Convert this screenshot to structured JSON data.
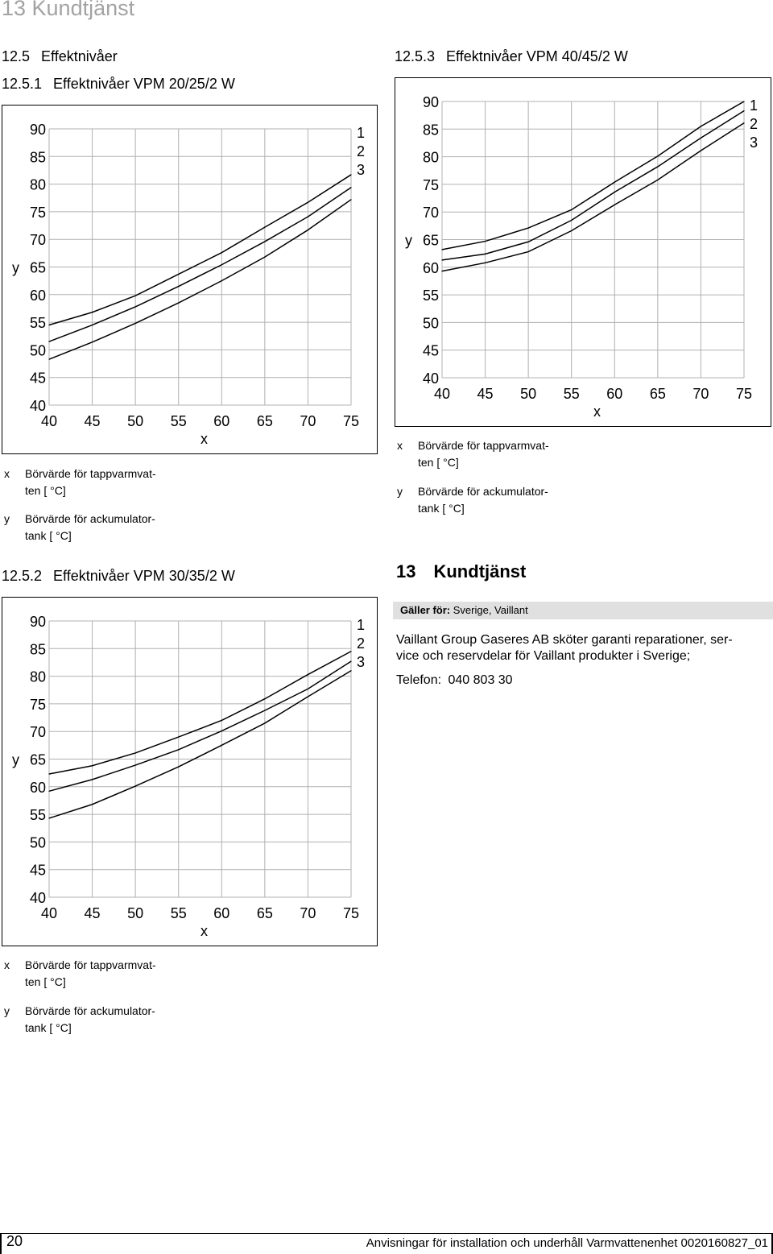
{
  "page_header": "13 Kundtjänst",
  "section_125": {
    "num": "12.5",
    "title": "Effektnivåer"
  },
  "charts": [
    {
      "num": "12.5.1",
      "title": "Effektnivåer VPM 20/25/2 W"
    },
    {
      "num": "12.5.2",
      "title": "Effektnivåer VPM 30/35/2 W"
    },
    {
      "num": "12.5.3",
      "title": "Effektnivåer VPM 40/45/2 W"
    }
  ],
  "chart_data": [
    {
      "type": "line",
      "x": [
        40,
        45,
        50,
        55,
        60,
        65,
        70,
        75
      ],
      "xlabel": "x",
      "ylabel": "y",
      "xlim": [
        40,
        75
      ],
      "ylim": [
        40,
        90
      ],
      "xticks": [
        "40",
        "45",
        "50",
        "55",
        "60",
        "65",
        "70",
        "75"
      ],
      "yticks": [
        "90",
        "85",
        "80",
        "75",
        "70",
        "65",
        "60",
        "55",
        "50",
        "45",
        "40"
      ],
      "grid": true,
      "series": [
        {
          "name": "1",
          "x": [
            40,
            45,
            50,
            55,
            60,
            65,
            70,
            75
          ],
          "y": [
            54.5,
            56.8,
            59.8,
            63.7,
            67.6,
            72.2,
            76.7,
            81.7
          ]
        },
        {
          "name": "2",
          "x": [
            40,
            45,
            50,
            55,
            60,
            65,
            70,
            75
          ],
          "y": [
            51.5,
            54.5,
            57.8,
            61.5,
            65.4,
            69.6,
            74.1,
            79.4
          ]
        },
        {
          "name": "3",
          "x": [
            40,
            45,
            50,
            55,
            60,
            65,
            70,
            75
          ],
          "y": [
            48.3,
            51.4,
            54.8,
            58.5,
            62.5,
            66.8,
            71.7,
            77.2
          ]
        }
      ]
    },
    {
      "type": "line",
      "x": [
        40,
        45,
        50,
        55,
        60,
        65,
        70,
        75
      ],
      "xlabel": "x",
      "ylabel": "y",
      "xlim": [
        40,
        75
      ],
      "ylim": [
        40,
        90
      ],
      "xticks": [
        "40",
        "45",
        "50",
        "55",
        "60",
        "65",
        "70",
        "75"
      ],
      "yticks": [
        "90",
        "85",
        "80",
        "75",
        "70",
        "65",
        "60",
        "55",
        "50",
        "45",
        "40"
      ],
      "grid": true,
      "series": [
        {
          "name": "1",
          "x": [
            40,
            45,
            50,
            55,
            60,
            65,
            70,
            75
          ],
          "y": [
            62.3,
            63.8,
            66.1,
            69.0,
            72.0,
            75.9,
            80.3,
            84.5
          ]
        },
        {
          "name": "2",
          "x": [
            40,
            45,
            50,
            55,
            60,
            65,
            70,
            75
          ],
          "y": [
            59.2,
            61.3,
            63.9,
            66.7,
            70.1,
            73.8,
            77.7,
            82.7
          ]
        },
        {
          "name": "3",
          "x": [
            40,
            45,
            50,
            55,
            60,
            65,
            70,
            75
          ],
          "y": [
            54.3,
            56.8,
            60.1,
            63.6,
            67.5,
            71.5,
            76.3,
            81.0
          ]
        }
      ]
    },
    {
      "type": "line",
      "x": [
        40,
        45,
        50,
        55,
        60,
        65,
        70,
        75
      ],
      "xlabel": "x",
      "ylabel": "y",
      "xlim": [
        40,
        75
      ],
      "ylim": [
        40,
        90
      ],
      "xticks": [
        "40",
        "45",
        "50",
        "55",
        "60",
        "65",
        "70",
        "75"
      ],
      "yticks": [
        "90",
        "85",
        "80",
        "75",
        "70",
        "65",
        "60",
        "55",
        "50",
        "45",
        "40"
      ],
      "grid": true,
      "series": [
        {
          "name": "1",
          "x": [
            40,
            45,
            50,
            55,
            60,
            65,
            70,
            75
          ],
          "y": [
            63.2,
            64.7,
            67.1,
            70.4,
            75.4,
            80.1,
            85.5,
            90.0
          ]
        },
        {
          "name": "2",
          "x": [
            40,
            45,
            50,
            55,
            60,
            65,
            70,
            75
          ],
          "y": [
            61.3,
            62.4,
            64.6,
            68.5,
            73.6,
            78.2,
            83.4,
            88.3
          ]
        },
        {
          "name": "3",
          "x": [
            40,
            45,
            50,
            55,
            60,
            65,
            70,
            75
          ],
          "y": [
            59.3,
            60.8,
            62.8,
            66.6,
            71.3,
            75.8,
            81.1,
            86.1
          ]
        }
      ]
    }
  ],
  "legend": {
    "x_key": "x",
    "x_line1": "Börvärde för tappvarmvat-",
    "x_line2": "ten [ °C]",
    "y_key": "y",
    "y_line1": "Börvärde för ackumulator-",
    "y_line2": "tank [ °C]"
  },
  "kundtjanst": {
    "num": "13",
    "title": "Kundtjänst",
    "applies_label": "Gäller för:",
    "applies_value": "Sverige, Vaillant",
    "body_line1": "Vaillant Group Gaseres AB sköter garanti reparationer, ser-",
    "body_line2": "vice och reservdelar för Vaillant produkter i Sverige;",
    "phone_label": "Telefon:",
    "phone_value": "040 803 30"
  },
  "footer": {
    "page_number": "20",
    "text": "Anvisningar för installation och underhåll Varmvattenenhet 0020160827_01"
  }
}
